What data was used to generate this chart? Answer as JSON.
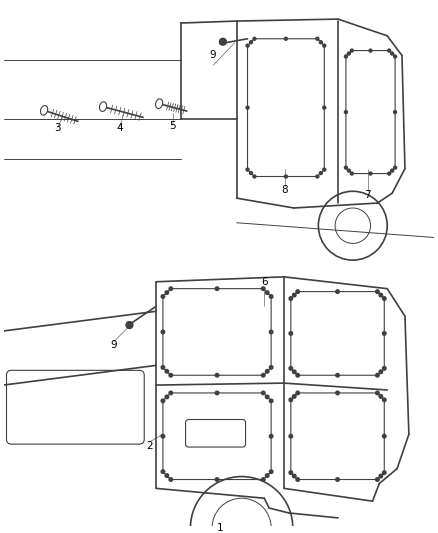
{
  "background_color": "#ffffff",
  "line_color": "#404040",
  "label_color": "#000000",
  "fig_width": 4.38,
  "fig_height": 5.33,
  "dpi": 100
}
